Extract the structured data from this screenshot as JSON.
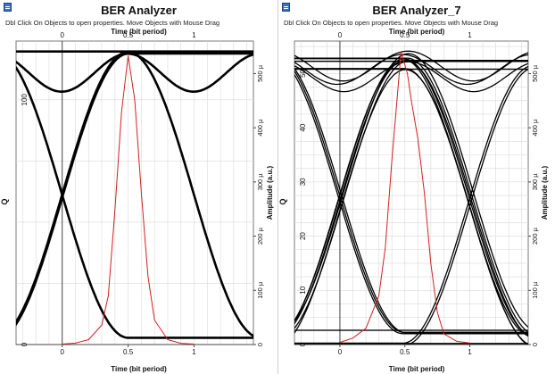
{
  "panels": [
    {
      "title": "BER Analyzer",
      "hint": "Dbl Click On Objects to open properties.  Move Objects with Mouse Drag",
      "x_axis_title": "Time (bit period)",
      "y_left_label": "Q",
      "y_right_label": "Amplitude (a.u.)",
      "x_ticks": [
        "0",
        "0.5",
        "1"
      ],
      "y_left_ticks": [
        "0",
        "100"
      ],
      "y_right_ticks": [
        "0",
        "100 µ",
        "200 µ",
        "300 µ",
        "400 µ",
        "500 µ"
      ]
    },
    {
      "title": "BER Analyzer_7",
      "hint": "Dbl Click On Objects to open properties.  Move Objects with Mouse Drag",
      "x_axis_title": "Time (bit period)",
      "y_left_label": "Q",
      "y_right_label": "Amplitude (a.u.)",
      "x_ticks": [
        "0",
        "0.5",
        "1"
      ],
      "y_left_ticks": [
        "0",
        "10",
        "20",
        "30",
        "40",
        "50"
      ],
      "y_right_ticks": [
        "0",
        "100 µ",
        "200 µ",
        "300 µ",
        "400 µ",
        "500 µ"
      ]
    }
  ],
  "colors": {
    "eye_trace": "#000000",
    "q_curve": "#d02020",
    "grid": "#d9d9d9",
    "icon": "#3a6fd0"
  },
  "chart_data": [
    {
      "type": "line",
      "title": "BER Analyzer",
      "xlabel": "Time (bit period)",
      "ylabel": "Q",
      "y2label": "Amplitude (a.u.)",
      "xlim": [
        -0.35,
        1.45
      ],
      "ylim": [
        0,
        124
      ],
      "y2lim": [
        0,
        0.00056
      ],
      "eye": {
        "high": 0.00054,
        "low": 1.3e-05,
        "dip": 0.00047,
        "noise": 4e-06,
        "traces": 5
      },
      "series": [
        {
          "name": "Q",
          "x": [
            0.0,
            0.1,
            0.2,
            0.3,
            0.35,
            0.4,
            0.45,
            0.5,
            0.55,
            0.6,
            0.65,
            0.7,
            0.8,
            0.9,
            1.0
          ],
          "values": [
            0.2,
            0.6,
            2,
            8,
            20,
            55,
            95,
            118,
            100,
            62,
            28,
            10,
            2,
            0.5,
            0.2
          ]
        }
      ]
    },
    {
      "type": "line",
      "title": "BER Analyzer_7",
      "xlabel": "Time (bit period)",
      "ylabel": "Q",
      "y2label": "Amplitude (a.u.)",
      "xlim": [
        -0.35,
        1.45
      ],
      "ylim": [
        0,
        56
      ],
      "y2lim": [
        0,
        0.00056
      ],
      "eye": {
        "high": 0.000525,
        "low": 1.3e-05,
        "dip": 0.00047,
        "noise": 1.8e-05,
        "traces": 22
      },
      "series": [
        {
          "name": "Q",
          "x": [
            0.0,
            0.1,
            0.2,
            0.3,
            0.35,
            0.4,
            0.45,
            0.47,
            0.52,
            0.55,
            0.6,
            0.65,
            0.7,
            0.75,
            0.8,
            0.9,
            1.0
          ],
          "values": [
            0.4,
            1.2,
            3,
            9,
            18,
            34,
            48,
            54,
            50,
            45,
            38,
            28,
            15,
            6,
            2,
            0.6,
            0.3
          ]
        }
      ]
    }
  ]
}
